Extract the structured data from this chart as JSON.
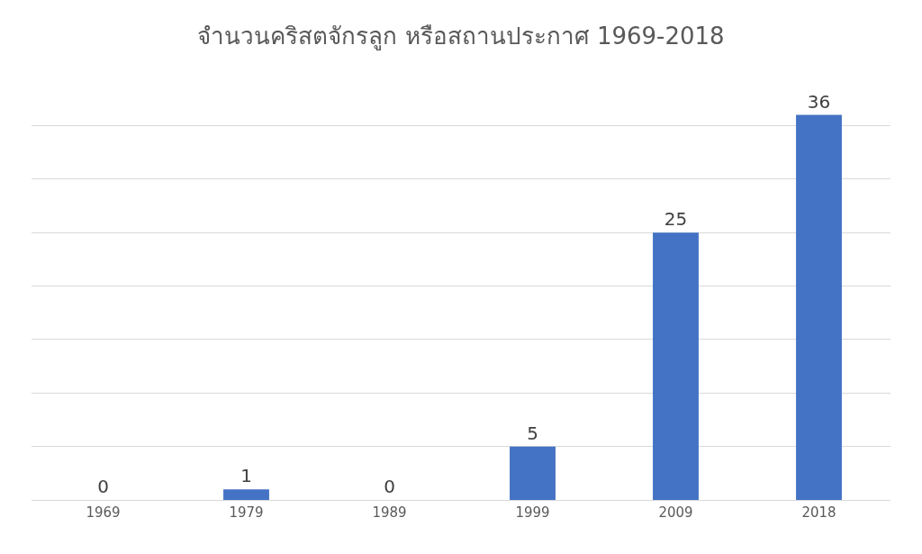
{
  "chart_data": {
    "type": "bar",
    "title": "จำนวนคริสตจักรลูก หรือสถานประกาศ 1969-2018",
    "categories": [
      "1969",
      "1979",
      "1989",
      "1999",
      "2009",
      "2018"
    ],
    "values": [
      0,
      1,
      0,
      5,
      25,
      36
    ],
    "color": "#4472c4",
    "data_labels": true,
    "grid": "y",
    "tick_labels": "x"
  }
}
